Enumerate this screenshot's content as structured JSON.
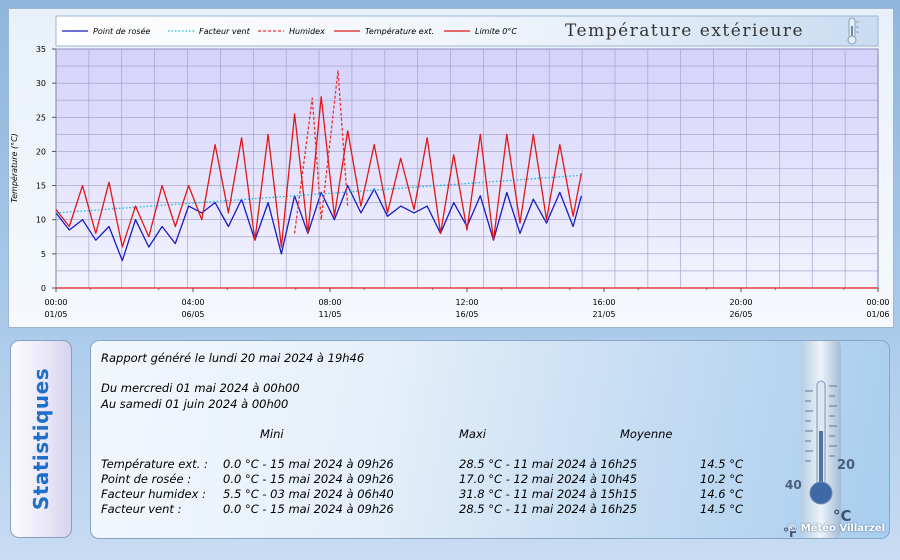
{
  "chart_data": {
    "type": "line",
    "title": "Température extérieure",
    "ylabel": "Température (°C)",
    "ylim": [
      0,
      35
    ],
    "yticks": [
      "0",
      "5",
      "10",
      "15",
      "20",
      "25",
      "30",
      "35"
    ],
    "xlim": [
      "2024-05-01T00:00",
      "2024-06-01T00:00"
    ],
    "xticks": [
      {
        "time": "00:00",
        "date": "01/05"
      },
      {
        "time": "04:00",
        "date": "06/05"
      },
      {
        "time": "08:00",
        "date": "11/05"
      },
      {
        "time": "12:00",
        "date": "16/05"
      },
      {
        "time": "16:00",
        "date": "21/05"
      },
      {
        "time": "20:00",
        "date": "26/05"
      },
      {
        "time": "00:00",
        "date": "01/06"
      }
    ],
    "grid": true,
    "legend_position": "top-left",
    "series": [
      {
        "name": "Point de rosée",
        "color": "#1a1ac8",
        "style": "solid",
        "x": [
          "2024-05-01T00:00",
          "2024-05-01T12:00",
          "2024-05-02T00:00",
          "2024-05-02T12:00",
          "2024-05-03T00:00",
          "2024-05-03T12:00",
          "2024-05-04T00:00",
          "2024-05-04T12:00",
          "2024-05-05T00:00",
          "2024-05-05T12:00",
          "2024-05-06T00:00",
          "2024-05-06T12:00",
          "2024-05-07T00:00",
          "2024-05-07T12:00",
          "2024-05-08T00:00",
          "2024-05-08T12:00",
          "2024-05-09T00:00",
          "2024-05-09T12:00",
          "2024-05-10T00:00",
          "2024-05-10T12:00",
          "2024-05-11T00:00",
          "2024-05-11T12:00",
          "2024-05-12T00:00",
          "2024-05-12T12:00",
          "2024-05-13T00:00",
          "2024-05-13T12:00",
          "2024-05-14T00:00",
          "2024-05-14T12:00",
          "2024-05-15T00:00",
          "2024-05-15T12:00",
          "2024-05-16T00:00",
          "2024-05-16T12:00",
          "2024-05-17T00:00",
          "2024-05-17T12:00",
          "2024-05-18T00:00",
          "2024-05-18T12:00",
          "2024-05-19T00:00",
          "2024-05-19T12:00",
          "2024-05-20T00:00",
          "2024-05-20T12:00",
          "2024-05-20T19:30"
        ],
        "values": [
          11,
          8.5,
          10,
          7,
          9,
          4,
          10,
          6,
          9,
          6.5,
          12,
          11,
          12.5,
          9,
          13,
          7,
          12.5,
          5,
          13.5,
          8,
          14,
          10,
          15,
          11,
          14.5,
          10.5,
          12,
          11,
          12,
          8,
          12.5,
          9,
          13.5,
          7,
          14,
          8,
          13,
          9.5,
          14,
          9,
          13.5
        ]
      },
      {
        "name": "Facteur vent",
        "color": "#19b8e8",
        "style": "dotted",
        "x": [
          "2024-05-01T00:00",
          "2024-05-20T19:30"
        ],
        "values": [
          11,
          16.5
        ]
      },
      {
        "name": "Humidex",
        "color": "#e83030",
        "style": "dashed",
        "x": [
          "2024-05-10T00:00",
          "2024-05-10T16:00",
          "2024-05-11T00:00",
          "2024-05-11T15:15",
          "2024-05-12T00:00"
        ],
        "values": [
          8,
          27.8,
          10,
          31.8,
          12
        ]
      },
      {
        "name": "Température ext.",
        "color": "#e01818",
        "style": "solid",
        "x": [
          "2024-05-01T00:00",
          "2024-05-01T12:00",
          "2024-05-02T00:00",
          "2024-05-02T12:00",
          "2024-05-03T00:00",
          "2024-05-03T12:00",
          "2024-05-04T00:00",
          "2024-05-04T12:00",
          "2024-05-05T00:00",
          "2024-05-05T12:00",
          "2024-05-06T00:00",
          "2024-05-06T12:00",
          "2024-05-07T00:00",
          "2024-05-07T12:00",
          "2024-05-08T00:00",
          "2024-05-08T12:00",
          "2024-05-09T00:00",
          "2024-05-09T12:00",
          "2024-05-10T00:00",
          "2024-05-10T12:00",
          "2024-05-11T00:00",
          "2024-05-11T12:00",
          "2024-05-12T00:00",
          "2024-05-12T12:00",
          "2024-05-13T00:00",
          "2024-05-13T12:00",
          "2024-05-14T00:00",
          "2024-05-14T12:00",
          "2024-05-15T00:00",
          "2024-05-15T12:00",
          "2024-05-16T00:00",
          "2024-05-16T12:00",
          "2024-05-17T00:00",
          "2024-05-17T12:00",
          "2024-05-18T00:00",
          "2024-05-18T12:00",
          "2024-05-19T00:00",
          "2024-05-19T12:00",
          "2024-05-20T00:00",
          "2024-05-20T12:00",
          "2024-05-20T19:30"
        ],
        "values": [
          11.5,
          9,
          15,
          8,
          15.5,
          6,
          12,
          7.5,
          15,
          9,
          15,
          10,
          21,
          11,
          22,
          7,
          22.5,
          6,
          25.5,
          8,
          28,
          10.5,
          23,
          12,
          21,
          11,
          19,
          11.5,
          22,
          8,
          19.5,
          8.5,
          22.5,
          7,
          22.5,
          9.5,
          22.5,
          10,
          21,
          10.5,
          16.8
        ]
      },
      {
        "name": "Limite 0°C",
        "color": "#e01818",
        "style": "solid",
        "x": [
          "2024-05-01T00:00",
          "2024-06-01T00:00"
        ],
        "values": [
          0,
          0
        ]
      }
    ]
  },
  "stats": {
    "side_title": "Statistiques",
    "generated": "Rapport généré le lundi 20 mai 2024 à 19h46",
    "period_start": "Du mercredi 01 mai 2024 à 00h00",
    "period_end": "Au samedi 01 juin 2024 à 00h00",
    "headers": {
      "min": "Mini",
      "max": "Maxi",
      "avg": "Moyenne"
    },
    "rows": [
      {
        "label": "Température ext. :",
        "min": "0.0 °C - 15 mai 2024 à 09h26",
        "max": "28.5 °C - 11 mai 2024 à 16h25",
        "avg": "14.5 °C"
      },
      {
        "label": "Point de rosée :",
        "min": "0.0 °C - 15 mai 2024 à 09h26",
        "max": "17.0 °C - 12 mai 2024 à 10h45",
        "avg": "10.2 °C"
      },
      {
        "label": "Facteur humidex :",
        "min": "5.5 °C - 03 mai 2024 à 06h40",
        "max": "31.8 °C - 11 mai 2024 à 15h15",
        "avg": "14.6 °C"
      },
      {
        "label": "Facteur vent :",
        "min": "0.0 °C - 15 mai 2024 à 09h26",
        "max": "28.5 °C - 11 mai 2024 à 16h25",
        "avg": "14.5 °C"
      }
    ],
    "thermo_labels": [
      "20",
      "40",
      "°C",
      "°F"
    ],
    "credit": "© Météo Villarzel"
  },
  "colors": {
    "plot_top": "#d4d2fa",
    "plot_bottom": "#f3f3fe",
    "grid": "#9c9cc8",
    "title_text": "#333333"
  },
  "icons": {
    "legend_thermometer": "thermometer-icon",
    "stats_thermometer": "thermometer-icon"
  }
}
